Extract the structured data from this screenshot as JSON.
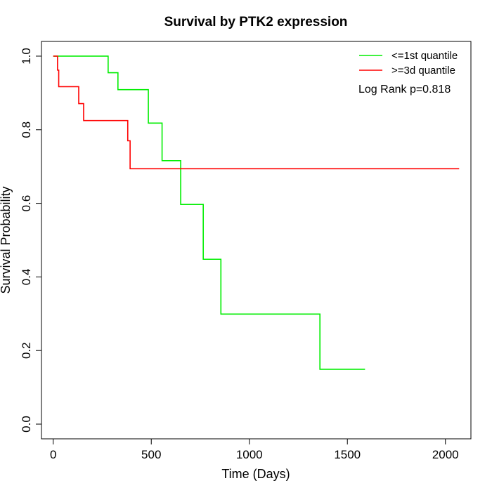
{
  "chart_data": {
    "type": "line",
    "subtype": "step",
    "title": "Survival by PTK2 expression",
    "xlabel": "Time (Days)",
    "ylabel": "Survival Probability",
    "xlim": [
      -60,
      2130
    ],
    "ylim": [
      -0.04,
      1.04
    ],
    "xticks": [
      0,
      500,
      1000,
      1500,
      2000
    ],
    "xtick_labels": [
      "0",
      "500",
      "1000",
      "1500",
      "2000"
    ],
    "yticks": [
      0.0,
      0.2,
      0.4,
      0.6,
      0.8,
      1.0
    ],
    "ytick_labels": [
      "0.0",
      "0.2",
      "0.4",
      "0.6",
      "0.8",
      "1.0"
    ],
    "grid": false,
    "legend_position": "top-right",
    "annotation": "Log Rank p=0.818",
    "series": [
      {
        "name": "<=1st quantile",
        "color": "#00ee00",
        "x": [
          0,
          280,
          330,
          485,
          555,
          650,
          765,
          855,
          1360,
          1590
        ],
        "y": [
          1.0,
          0.955,
          0.909,
          0.818,
          0.716,
          0.597,
          0.448,
          0.299,
          0.149,
          0.149
        ]
      },
      {
        "name": ">=3d quantile",
        "color": "#ff0000",
        "x": [
          0,
          22,
          28,
          130,
          155,
          380,
          392,
          2070
        ],
        "y": [
          1.0,
          0.962,
          0.917,
          0.871,
          0.825,
          0.77,
          0.694,
          0.694
        ]
      }
    ]
  }
}
